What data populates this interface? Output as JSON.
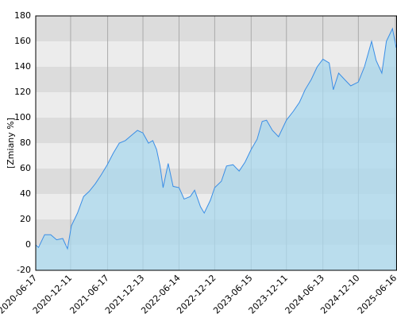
{
  "chart_data": {
    "type": "area",
    "y_label": "[Zmiany %]",
    "x": [
      "2020-06-17",
      "2020-07-01",
      "2020-08-01",
      "2020-09-01",
      "2020-10-01",
      "2020-11-01",
      "2020-11-25",
      "2020-12-15",
      "2021-01-15",
      "2021-02-15",
      "2021-03-15",
      "2021-04-15",
      "2021-05-15",
      "2021-06-15",
      "2021-07-15",
      "2021-08-15",
      "2021-09-15",
      "2021-10-15",
      "2021-11-15",
      "2021-12-13",
      "2022-01-10",
      "2022-02-01",
      "2022-02-20",
      "2022-03-10",
      "2022-03-25",
      "2022-04-20",
      "2022-05-15",
      "2022-06-14",
      "2022-07-10",
      "2022-08-10",
      "2022-09-01",
      "2022-10-01",
      "2022-10-20",
      "2022-11-20",
      "2022-12-12",
      "2023-01-15",
      "2023-02-10",
      "2023-03-15",
      "2023-04-15",
      "2023-05-15",
      "2023-06-15",
      "2023-07-15",
      "2023-08-10",
      "2023-09-01",
      "2023-10-01",
      "2023-11-01",
      "2023-12-11",
      "2024-01-15",
      "2024-02-15",
      "2024-03-15",
      "2024-04-15",
      "2024-05-15",
      "2024-06-13",
      "2024-07-15",
      "2024-08-05",
      "2024-09-01",
      "2024-10-01",
      "2024-11-01",
      "2024-12-10",
      "2025-01-10",
      "2025-02-15",
      "2025-03-10",
      "2025-04-08",
      "2025-05-01",
      "2025-06-01",
      "2025-06-10",
      "2025-06-20"
    ],
    "values": [
      0,
      -2,
      8,
      8,
      4,
      5,
      -3,
      15,
      25,
      38,
      42,
      48,
      55,
      63,
      72,
      80,
      82,
      86,
      90,
      88,
      80,
      82,
      75,
      62,
      45,
      64,
      46,
      45,
      36,
      38,
      43,
      30,
      25,
      35,
      45,
      50,
      62,
      63,
      58,
      65,
      75,
      83,
      97,
      98,
      90,
      85,
      98,
      105,
      112,
      122,
      130,
      140,
      146,
      143,
      122,
      135,
      130,
      125,
      128,
      140,
      160,
      145,
      135,
      160,
      170,
      163,
      155
    ],
    "color": "#3a8ee6",
    "fill": "#a9d8ee",
    "xlim": [
      "2020-06-17",
      "2025-06-24"
    ],
    "xticks": [
      "2020-06-17",
      "2020-12-11",
      "2021-06-17",
      "2021-12-13",
      "2022-06-14",
      "2022-12-12",
      "2023-06-15",
      "2023-12-11",
      "2024-06-13",
      "2024-12-10",
      "2025-06-16"
    ],
    "ylim": [
      -20,
      180
    ],
    "yticks": [
      -20,
      0,
      20,
      40,
      60,
      80,
      100,
      120,
      140,
      160,
      180
    ],
    "grid": true
  }
}
